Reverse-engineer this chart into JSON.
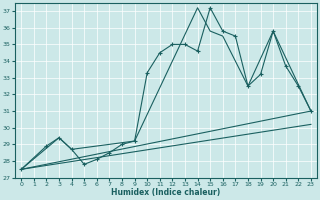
{
  "xlabel": "Humidex (Indice chaleur)",
  "xlim": [
    -0.5,
    23.5
  ],
  "ylim": [
    27,
    37.5
  ],
  "yticks": [
    27,
    28,
    29,
    30,
    31,
    32,
    33,
    34,
    35,
    36,
    37
  ],
  "xticks": [
    0,
    1,
    2,
    3,
    4,
    5,
    6,
    7,
    8,
    9,
    10,
    11,
    12,
    13,
    14,
    15,
    16,
    17,
    18,
    19,
    20,
    21,
    22,
    23
  ],
  "background_color": "#cce8e8",
  "line_color": "#1a6060",
  "series1_x": [
    0,
    2,
    3,
    4,
    5,
    6,
    7,
    8,
    9,
    10,
    11,
    12,
    13,
    14,
    15,
    16,
    17,
    18,
    19,
    20,
    21,
    22,
    23
  ],
  "series1_y": [
    27.5,
    28.9,
    29.4,
    28.7,
    27.8,
    28.1,
    28.5,
    29.0,
    29.2,
    33.3,
    34.5,
    35.0,
    35.0,
    34.6,
    37.2,
    35.8,
    35.5,
    32.5,
    33.2,
    35.8,
    33.7,
    32.5,
    31.0
  ],
  "series2_x": [
    0,
    3,
    4,
    9,
    14,
    15,
    16,
    18,
    20,
    23
  ],
  "series2_y": [
    27.5,
    29.4,
    28.7,
    29.2,
    37.2,
    35.8,
    35.5,
    32.5,
    35.8,
    31.0
  ],
  "line1_x": [
    0,
    23
  ],
  "line1_y": [
    27.5,
    31.0
  ],
  "line2_x": [
    0,
    23
  ],
  "line2_y": [
    27.5,
    30.2
  ]
}
